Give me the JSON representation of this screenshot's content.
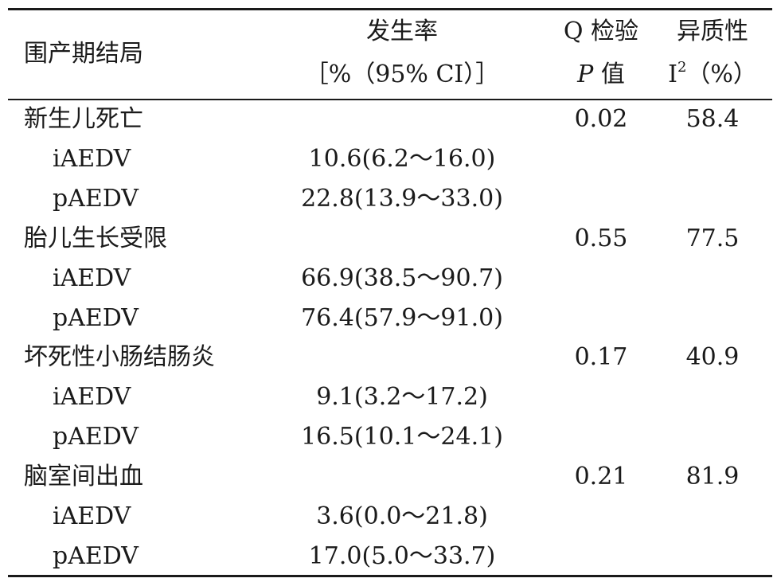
{
  "header": {
    "col1": "围产期结局",
    "col2_line1": "发生率",
    "col2_line2": "［%（95% CI）］",
    "col3_line1": "Q 检验",
    "col3_line2_italic": "P",
    "col3_line2_rest": "值",
    "col4_line1": "异质性",
    "col4_line2_base": "I",
    "col4_line2_sup": "2",
    "col4_line2_rest": "（%）"
  },
  "rows": [
    {
      "label": "新生儿死亡",
      "rate": "",
      "p": "0.02",
      "i2": "58.4",
      "sub": false
    },
    {
      "label": "iAEDV",
      "rate": "10.6(6.2～16.0)",
      "p": "",
      "i2": "",
      "sub": true
    },
    {
      "label": "pAEDV",
      "rate": "22.8(13.9～33.0)",
      "p": "",
      "i2": "",
      "sub": true
    },
    {
      "label": "胎儿生长受限",
      "rate": "",
      "p": "0.55",
      "i2": "77.5",
      "sub": false
    },
    {
      "label": "iAEDV",
      "rate": "66.9(38.5～90.7)",
      "p": "",
      "i2": "",
      "sub": true
    },
    {
      "label": "pAEDV",
      "rate": "76.4(57.9～91.0)",
      "p": "",
      "i2": "",
      "sub": true
    },
    {
      "label": "坏死性小肠结肠炎",
      "rate": "",
      "p": "0.17",
      "i2": "40.9",
      "sub": false
    },
    {
      "label": "iAEDV",
      "rate": "9.1(3.2～17.2)",
      "p": "",
      "i2": "",
      "sub": true
    },
    {
      "label": "pAEDV",
      "rate": "16.5(10.1～24.1)",
      "p": "",
      "i2": "",
      "sub": true
    },
    {
      "label": "脑室间出血",
      "rate": "",
      "p": "0.21",
      "i2": "81.9",
      "sub": false
    },
    {
      "label": "iAEDV",
      "rate": "3.6(0.0～21.8)",
      "p": "",
      "i2": "",
      "sub": true
    },
    {
      "label": "pAEDV",
      "rate": "17.0(5.0～33.7)",
      "p": "",
      "i2": "",
      "sub": true
    }
  ]
}
